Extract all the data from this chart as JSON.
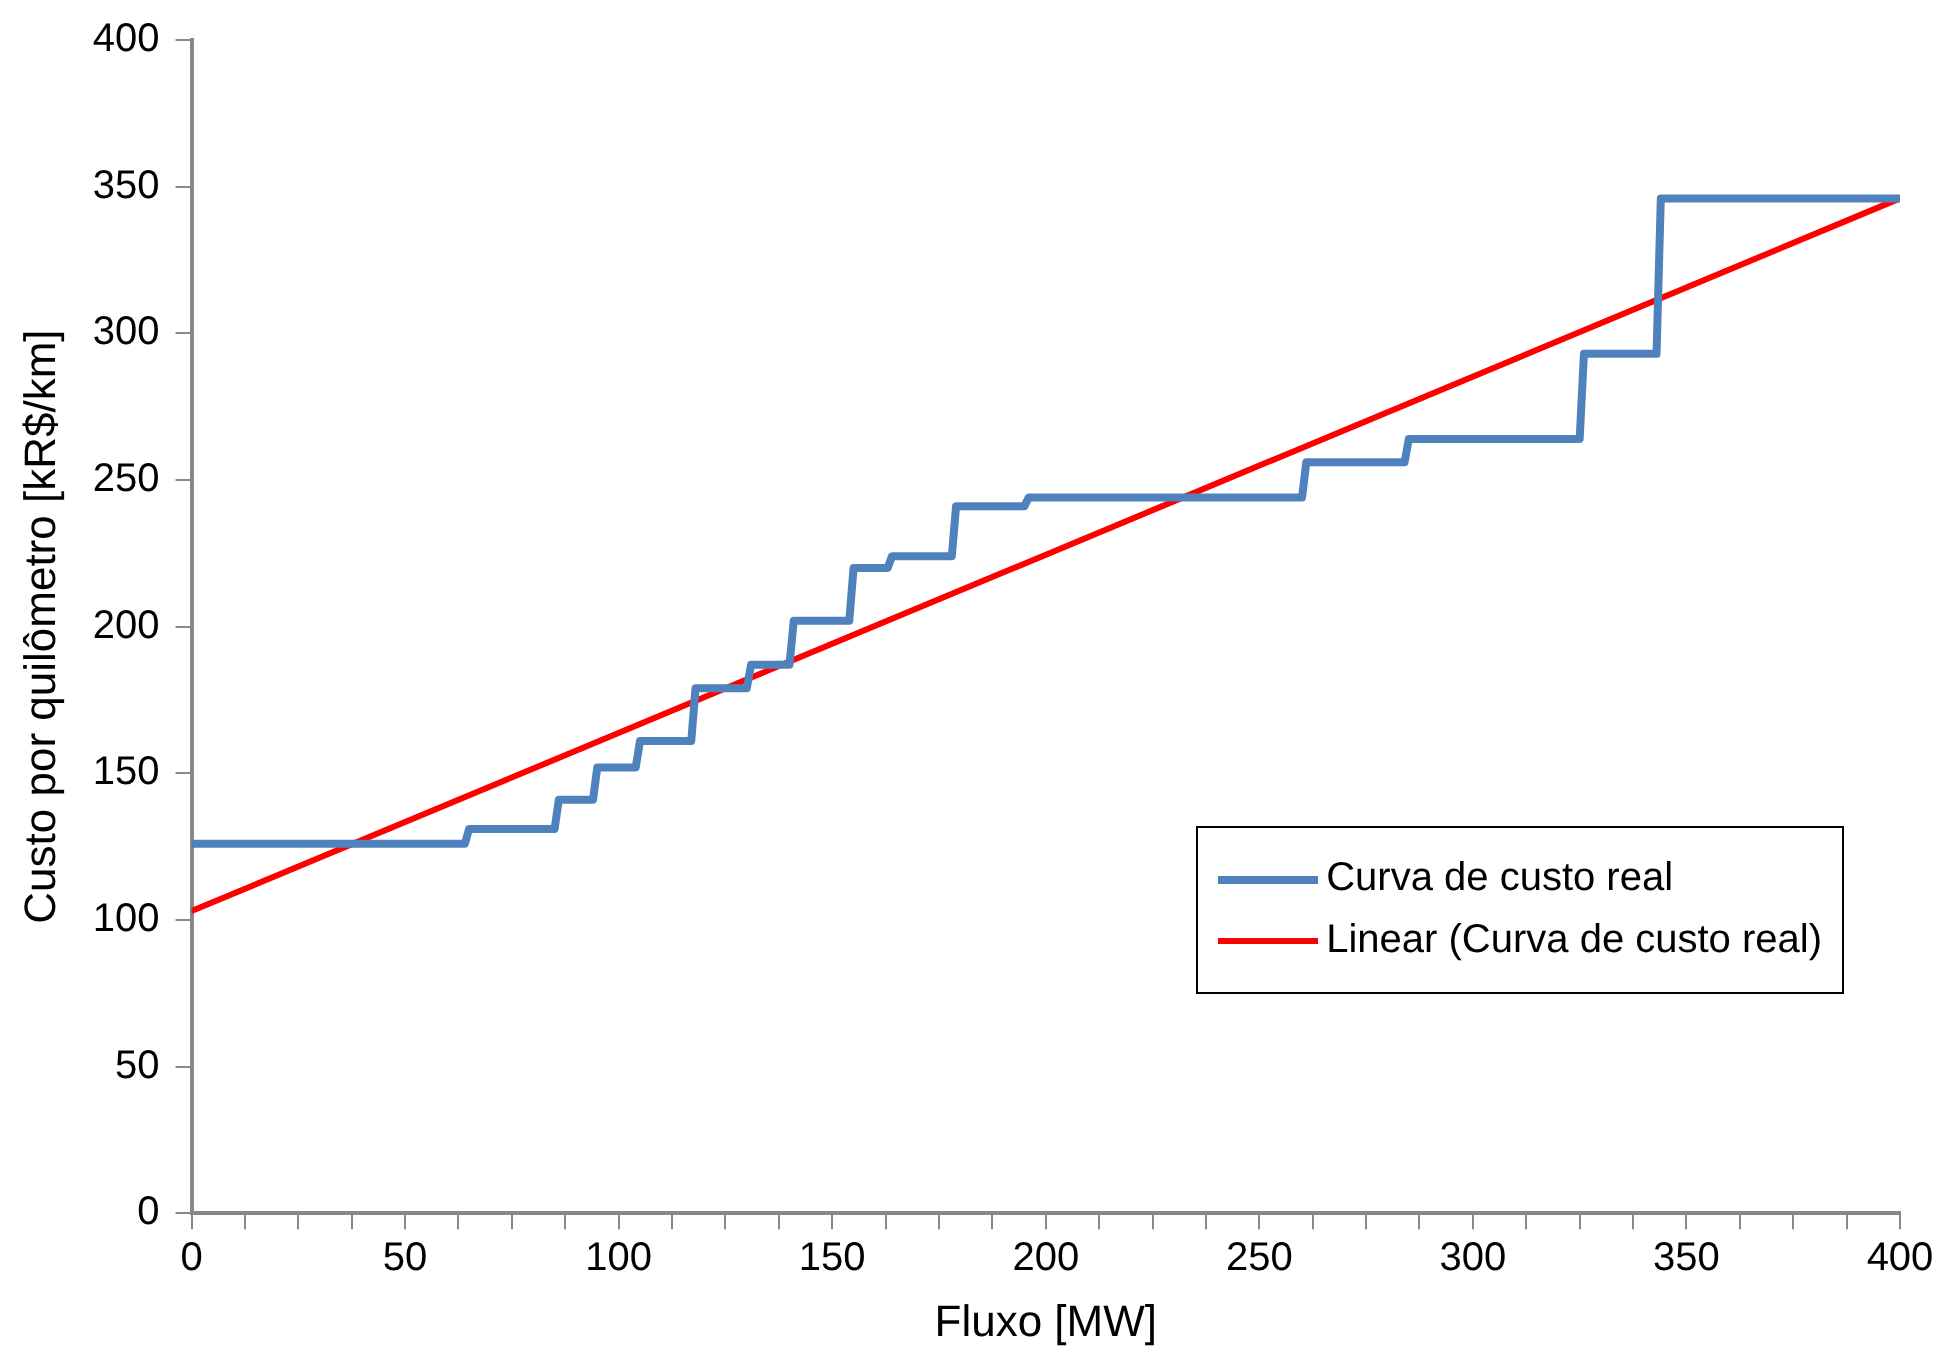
{
  "chart_data": {
    "type": "line",
    "xlabel": "Fluxo [MW]",
    "ylabel": "Custo por quilômetro [kR$/km]",
    "xlim": [
      0,
      400
    ],
    "ylim": [
      0,
      400
    ],
    "xticks": [
      0,
      {
        "value": 12.5,
        "label": null
      },
      {
        "value": 25,
        "label": null
      },
      {
        "value": 37.5,
        "label": null
      },
      50,
      {
        "value": 62.5,
        "label": null
      },
      {
        "value": 75,
        "label": null
      },
      {
        "value": 87.5,
        "label": null
      },
      100,
      {
        "value": 112.5,
        "label": null
      },
      {
        "value": 125,
        "label": null
      },
      {
        "value": 137.5,
        "label": null
      },
      150,
      {
        "value": 162.5,
        "label": null
      },
      {
        "value": 175,
        "label": null
      },
      {
        "value": 187.5,
        "label": null
      },
      200,
      {
        "value": 212.5,
        "label": null
      },
      {
        "value": 225,
        "label": null
      },
      {
        "value": 237.5,
        "label": null
      },
      250,
      {
        "value": 262.5,
        "label": null
      },
      {
        "value": 275,
        "label": null
      },
      {
        "value": 287.5,
        "label": null
      },
      300,
      {
        "value": 312.5,
        "label": null
      },
      {
        "value": 325,
        "label": null
      },
      {
        "value": 337.5,
        "label": null
      },
      350,
      {
        "value": 362.5,
        "label": null
      },
      {
        "value": 375,
        "label": null
      },
      {
        "value": 387.5,
        "label": null
      },
      400
    ],
    "yticks": [
      0,
      50,
      100,
      150,
      200,
      250,
      300,
      350,
      400
    ],
    "grid": false,
    "legend": "right",
    "marker": "none",
    "series": [
      {
        "name": "Curva de custo real",
        "color": "#4f81bd",
        "x": [
          0,
          64,
          65,
          85,
          86,
          94,
          95,
          104,
          105,
          117,
          118,
          130,
          131,
          140,
          141,
          154,
          155,
          163,
          164,
          178,
          179,
          195,
          196,
          260,
          261,
          284,
          285,
          325,
          326,
          343,
          344,
          400
        ],
        "values": [
          126,
          126,
          131,
          131,
          141,
          141,
          152,
          152,
          161,
          161,
          179,
          179,
          187,
          187,
          202,
          202,
          220,
          220,
          224,
          224,
          241,
          241,
          244,
          244,
          256,
          256,
          264,
          264,
          293,
          293,
          346,
          346
        ]
      },
      {
        "name": "Linear (Curva de custo real)",
        "color": "#ff0000",
        "x": [
          0,
          400
        ],
        "values": [
          103,
          346
        ]
      }
    ]
  }
}
